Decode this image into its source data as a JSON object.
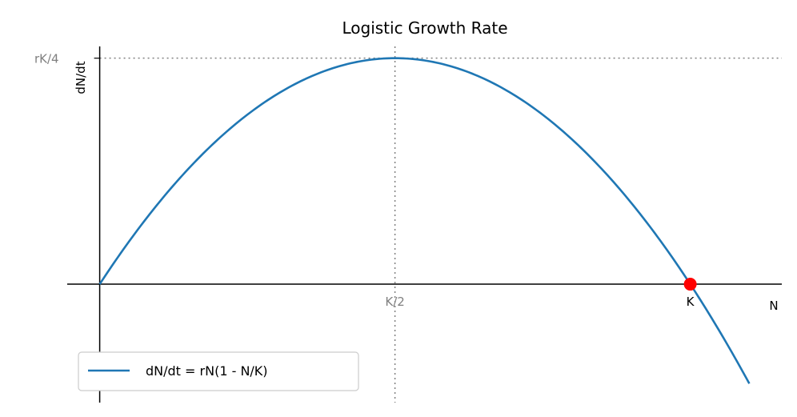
{
  "chart_data": {
    "type": "line",
    "title": "Logistic Growth Rate",
    "xlabel": "N",
    "ylabel": "dN/dt",
    "equation": "dN/dt = rN(1 - N/K)",
    "r": 1,
    "K": 1,
    "xlim": [
      -0.055,
      1.155
    ],
    "ylim": [
      -0.131,
      0.263
    ],
    "curve_x_range": [
      0,
      1.1
    ],
    "series": [
      {
        "name": "dN/dt = rN(1 - N/K)",
        "color": "#1f77b4",
        "style": "solid"
      }
    ],
    "equilibrium_point": {
      "x": 1.0,
      "y": 0.0,
      "label": "K",
      "color": "#ff0000"
    },
    "reference_lines": [
      {
        "orientation": "vertical",
        "value": 0.5,
        "style": "dotted",
        "color": "#808080"
      },
      {
        "orientation": "horizontal",
        "value": 0.25,
        "style": "dotted",
        "color": "#808080"
      }
    ],
    "annotations": [
      {
        "text": "K/2",
        "x": 0.5,
        "y": 0,
        "color": "#808080"
      },
      {
        "text": "rK/4",
        "x": 0,
        "y": 0.25,
        "color": "#808080"
      }
    ],
    "legend_position": "lower-left",
    "grid": false,
    "spines": "centered at origin"
  }
}
